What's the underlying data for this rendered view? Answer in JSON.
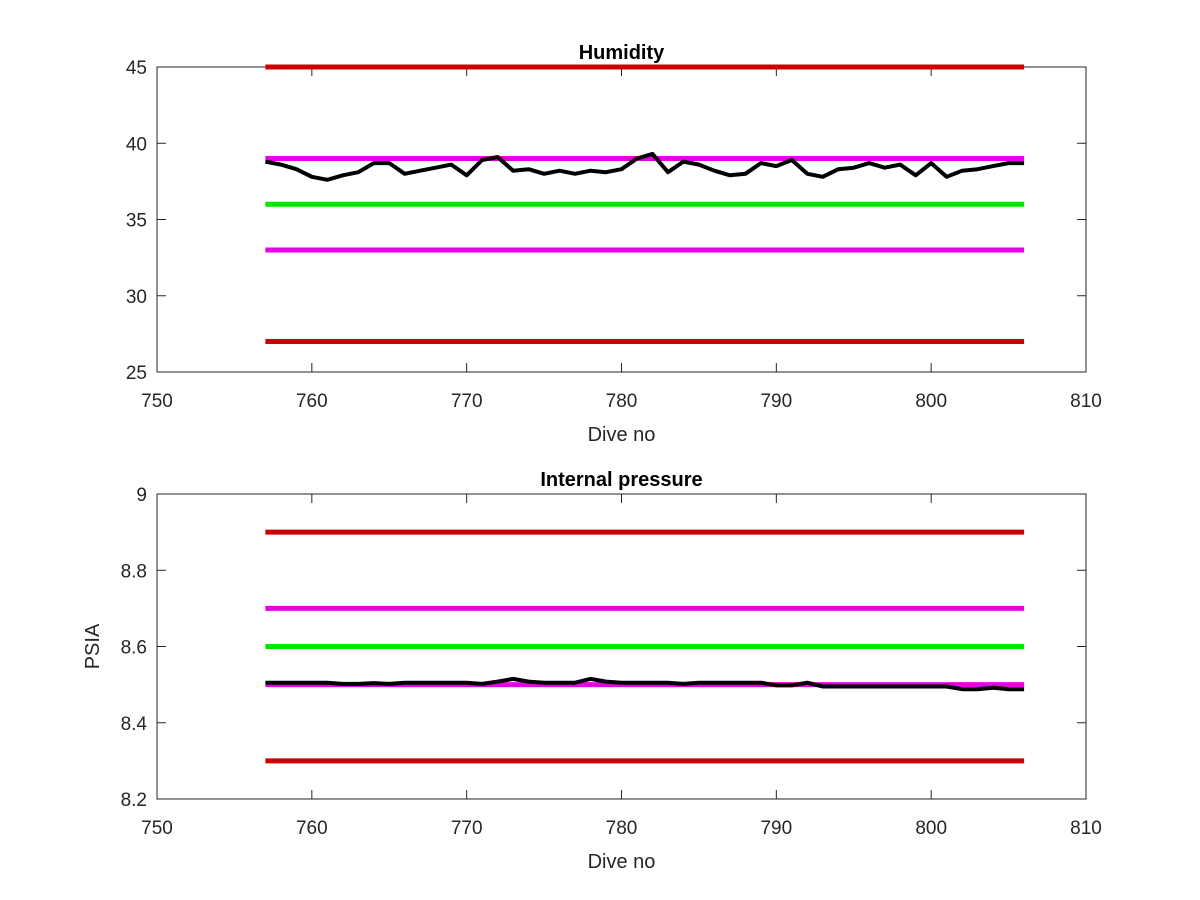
{
  "chart_data": [
    {
      "type": "line",
      "title": "Humidity",
      "xlabel": "Dive no",
      "ylabel": "",
      "xlim": [
        750,
        810
      ],
      "ylim": [
        25,
        45
      ],
      "xticks": [
        750,
        760,
        770,
        780,
        790,
        800,
        810
      ],
      "yticks": [
        25,
        30,
        35,
        40,
        45
      ],
      "grid": false,
      "legend": "none",
      "series": [
        {
          "color": "#cc0000",
          "x": [
            757,
            806
          ],
          "y": [
            45,
            45
          ]
        },
        {
          "color": "#e600e6",
          "x": [
            757,
            806
          ],
          "y": [
            39,
            39
          ]
        },
        {
          "color": "#00e600",
          "x": [
            757,
            806
          ],
          "y": [
            36,
            36
          ]
        },
        {
          "color": "#e600e6",
          "x": [
            757,
            806
          ],
          "y": [
            33,
            33
          ]
        },
        {
          "color": "#cc0000",
          "x": [
            757,
            806
          ],
          "y": [
            27,
            27
          ]
        },
        {
          "color": "#000000",
          "x": [
            757,
            758,
            759,
            760,
            761,
            762,
            763,
            764,
            765,
            766,
            767,
            768,
            769,
            770,
            771,
            772,
            773,
            774,
            775,
            776,
            777,
            778,
            779,
            780,
            781,
            782,
            783,
            784,
            785,
            786,
            787,
            788,
            789,
            790,
            791,
            792,
            793,
            794,
            795,
            796,
            797,
            798,
            799,
            800,
            801,
            802,
            803,
            804,
            805,
            806
          ],
          "y": [
            38.8,
            38.6,
            38.3,
            37.8,
            37.6,
            37.9,
            38.1,
            38.7,
            38.7,
            38.0,
            38.2,
            38.4,
            38.6,
            37.9,
            38.9,
            39.1,
            38.2,
            38.3,
            38.0,
            38.2,
            38.0,
            38.2,
            38.1,
            38.3,
            39.0,
            39.3,
            38.1,
            38.8,
            38.6,
            38.2,
            37.9,
            38.0,
            38.7,
            38.5,
            38.9,
            38.0,
            37.8,
            38.3,
            38.4,
            38.7,
            38.4,
            38.6,
            37.9,
            38.7,
            37.8,
            38.2,
            38.3,
            38.5,
            38.7,
            38.7
          ]
        }
      ]
    },
    {
      "type": "line",
      "title": "Internal pressure",
      "xlabel": "Dive no",
      "ylabel": "PSIA",
      "xlim": [
        750,
        810
      ],
      "ylim": [
        8.2,
        9
      ],
      "xticks": [
        750,
        760,
        770,
        780,
        790,
        800,
        810
      ],
      "yticks": [
        "8.2",
        "8.4",
        "8.6",
        "8.8",
        "9"
      ],
      "grid": false,
      "legend": "none",
      "series": [
        {
          "color": "#cc0000",
          "x": [
            757,
            806
          ],
          "y": [
            8.9,
            8.9
          ]
        },
        {
          "color": "#e600e6",
          "x": [
            757,
            806
          ],
          "y": [
            8.7,
            8.7
          ]
        },
        {
          "color": "#00e600",
          "x": [
            757,
            806
          ],
          "y": [
            8.6,
            8.6
          ]
        },
        {
          "color": "#e600e6",
          "x": [
            757,
            806
          ],
          "y": [
            8.5,
            8.5
          ]
        },
        {
          "color": "#cc0000",
          "x": [
            757,
            806
          ],
          "y": [
            8.3,
            8.3
          ]
        },
        {
          "color": "#000000",
          "x": [
            757,
            758,
            759,
            760,
            761,
            762,
            763,
            764,
            765,
            766,
            767,
            768,
            769,
            770,
            771,
            772,
            773,
            774,
            775,
            776,
            777,
            778,
            779,
            780,
            781,
            782,
            783,
            784,
            785,
            786,
            787,
            788,
            789,
            790,
            791,
            792,
            793,
            794,
            795,
            796,
            797,
            798,
            799,
            800,
            801,
            802,
            803,
            804,
            805,
            806
          ],
          "y": [
            8.505,
            8.505,
            8.505,
            8.505,
            8.505,
            8.502,
            8.502,
            8.504,
            8.502,
            8.505,
            8.505,
            8.505,
            8.505,
            8.505,
            8.502,
            8.508,
            8.515,
            8.508,
            8.505,
            8.505,
            8.505,
            8.515,
            8.508,
            8.505,
            8.505,
            8.505,
            8.505,
            8.502,
            8.505,
            8.505,
            8.505,
            8.505,
            8.505,
            8.498,
            8.498,
            8.505,
            8.495,
            8.495,
            8.495,
            8.495,
            8.495,
            8.495,
            8.495,
            8.495,
            8.495,
            8.488,
            8.488,
            8.492,
            8.488,
            8.488
          ]
        }
      ]
    }
  ]
}
